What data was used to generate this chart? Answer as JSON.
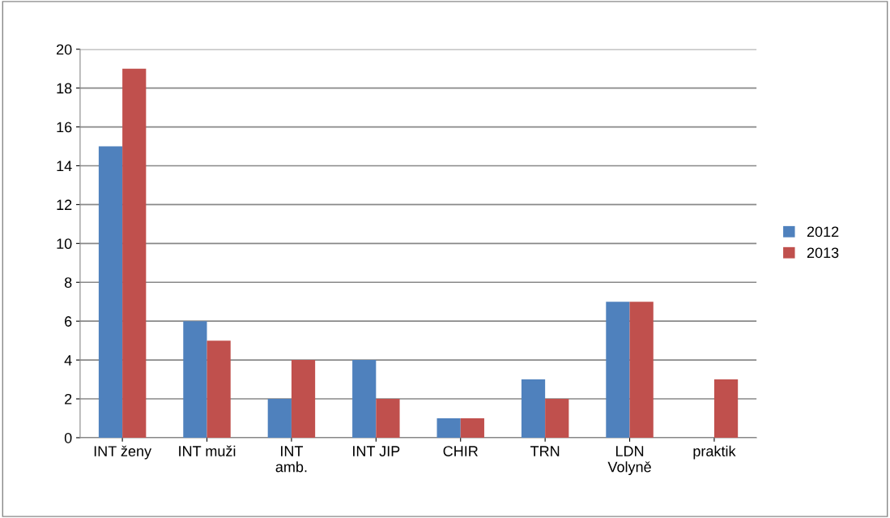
{
  "chart_data": {
    "type": "bar",
    "categories": [
      "INT ženy",
      "INT muži",
      "INT\namb.",
      "INT JIP",
      "CHIR",
      "TRN",
      "LDN\nVolyně",
      "praktik"
    ],
    "series": [
      {
        "name": "2012",
        "color": "#4f81bd",
        "values": [
          15,
          6,
          2,
          4,
          1,
          3,
          7,
          0
        ]
      },
      {
        "name": "2013",
        "color": "#c0504d",
        "values": [
          19,
          5,
          4,
          2,
          1,
          2,
          7,
          3
        ]
      }
    ],
    "ylim": [
      0,
      20
    ],
    "yticks": [
      0,
      2,
      4,
      6,
      8,
      10,
      12,
      14,
      16,
      18,
      20
    ],
    "grid": "y",
    "legend": "right"
  }
}
